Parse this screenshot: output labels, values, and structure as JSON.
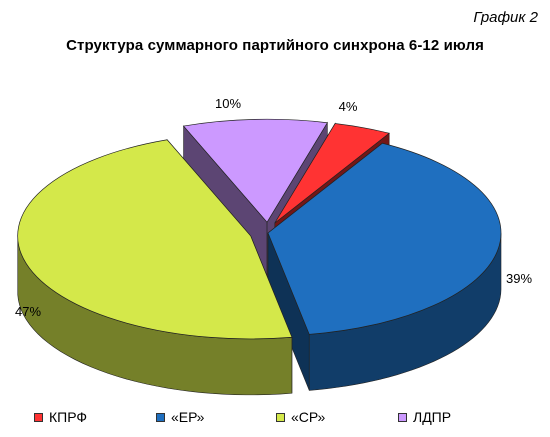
{
  "figure_label": "График 2",
  "chart_data": {
    "type": "pie",
    "title": "Структура суммарного партийного синхрона 6-12 июля",
    "slices": [
      {
        "name": "КПРФ",
        "value": 4,
        "label": "4%",
        "color": "#ff3333",
        "exploded": true
      },
      {
        "name": "«ЕР»",
        "value": 39,
        "label": "39%",
        "color": "#1f6fbf",
        "exploded": false
      },
      {
        "name": "«СР»",
        "value": 47,
        "label": "47%",
        "color": "#d4e84a",
        "exploded": true
      },
      {
        "name": "ЛДПР",
        "value": 10,
        "label": "10%",
        "color": "#cc99ff",
        "exploded": true
      }
    ],
    "legend_position": "bottom",
    "style": "3d-exploded"
  }
}
